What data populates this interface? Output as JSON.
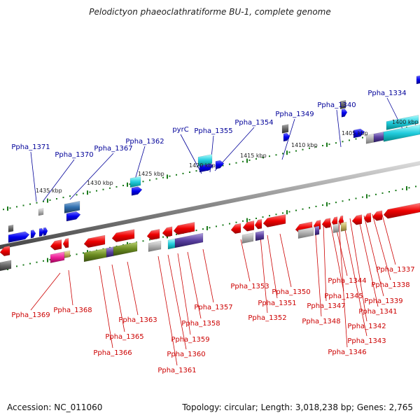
{
  "title": "Pelodictyon phaeoclathratiforme BU-1, complete genome",
  "footer": {
    "accession": "Accession: NC_011060",
    "topology": "Topology: circular; Length: 3,018,238 bp; Genes: 2,765"
  },
  "kbp_labels": [
    "1400 kbp",
    "1405 kbp",
    "1410 kbp",
    "1415 kbp",
    "1420 kbp",
    "1425 kbp",
    "1430 kbp",
    "1435 kbp"
  ],
  "upper_labels": [
    "Ppha_1334",
    "Ppha_1340",
    "Ppha_1349",
    "Ppha_1354",
    "Ppha_1355",
    "pyrC",
    "Ppha_1362",
    "Ppha_1367",
    "Ppha_1370",
    "Ppha_1371"
  ],
  "lower_labels": [
    "Ppha_1337",
    "Ppha_1338",
    "Ppha_1339",
    "Ppha_1341",
    "Ppha_1342",
    "Ppha_1343",
    "Ppha_1344",
    "Ppha_1345",
    "Ppha_1346",
    "Ppha_1347",
    "Ppha_1348",
    "Ppha_1350",
    "Ppha_1351",
    "Ppha_1352",
    "Ppha_1353",
    "Ppha_1357",
    "Ppha_1358",
    "Ppha_1359",
    "Ppha_1360",
    "Ppha_1361",
    "Ppha_1363",
    "Ppha_1365",
    "Ppha_1366",
    "Ppha_1368",
    "Ppha_1369"
  ],
  "colors": {
    "forward": "#0000ee",
    "reverse": "#ee0000",
    "label_blue": "#000099",
    "label_red": "#cc0000",
    "tick": "#1a7a1a",
    "backbone": "#888888"
  }
}
